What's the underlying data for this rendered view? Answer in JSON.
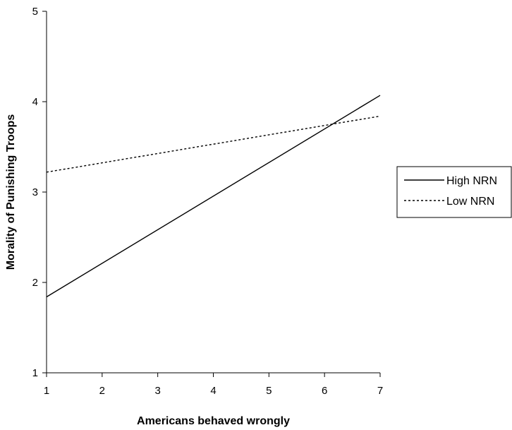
{
  "chart_data": {
    "type": "line",
    "title": "",
    "xlabel": "Americans behaved wrongly",
    "ylabel": "Morality of Punishing Troops",
    "xlim": [
      1,
      7
    ],
    "ylim": [
      1,
      5
    ],
    "x_ticks": [
      1,
      2,
      3,
      4,
      5,
      6,
      7
    ],
    "y_ticks": [
      1,
      2,
      3,
      4,
      5
    ],
    "grid": false,
    "legend_position": "right",
    "series": [
      {
        "name": "High NRN",
        "x": [
          1,
          7
        ],
        "y": [
          1.84,
          4.07
        ],
        "style": "solid",
        "color": "#000000"
      },
      {
        "name": "Low NRN",
        "x": [
          1,
          7
        ],
        "y": [
          3.22,
          3.84
        ],
        "style": "dotted",
        "color": "#000000"
      }
    ]
  }
}
